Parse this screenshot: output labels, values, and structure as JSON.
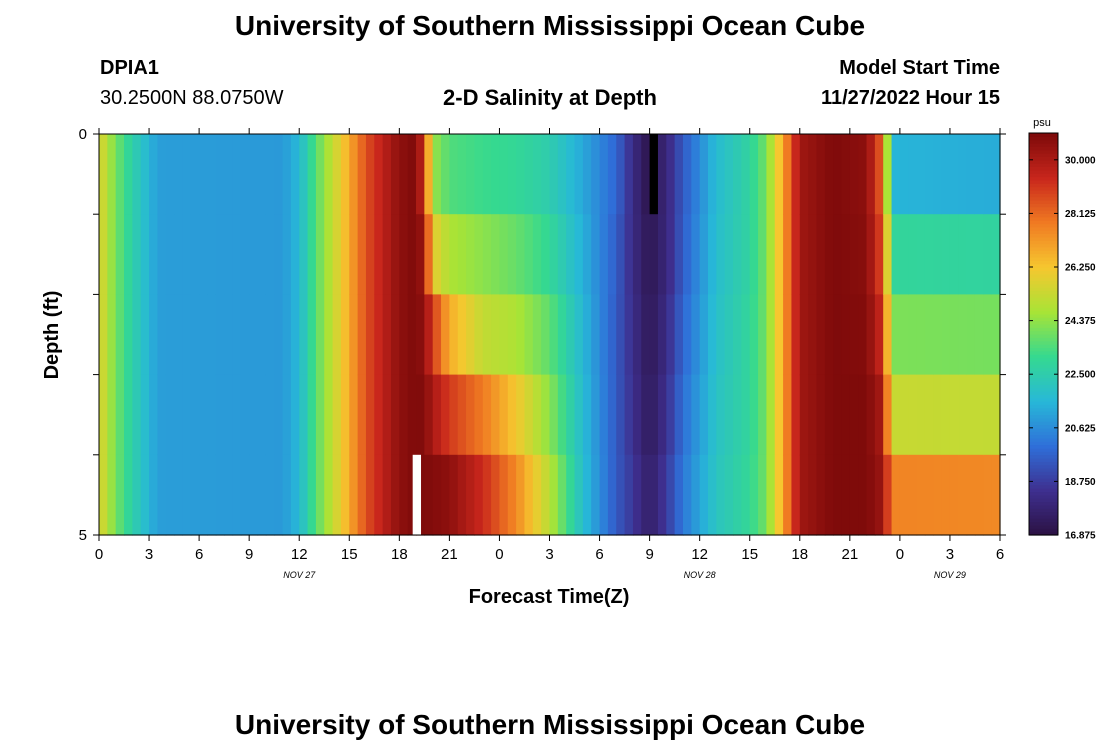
{
  "page": {
    "title_top": "University of Southern Mississippi Ocean Cube",
    "title_bottom": "University of Southern Mississippi Ocean Cube",
    "station_id": "DPIA1",
    "station_coords": "30.2500N  88.0750W",
    "plot_title": "2-D Salinity at Depth",
    "model_label": "Model Start Time",
    "model_time": "11/27/2022 Hour 15"
  },
  "chart_data": {
    "type": "heatmap",
    "title": "2-D Salinity at Depth",
    "xlabel": "Forecast Time(Z)",
    "ylabel": "Depth (ft)",
    "x_tick_labels": [
      "0",
      "3",
      "6",
      "9",
      "12",
      "15",
      "18",
      "21",
      "0",
      "3",
      "6",
      "9",
      "12",
      "15",
      "18",
      "21",
      "0",
      "3",
      "6"
    ],
    "date_labels": [
      {
        "label": "NOV 27",
        "at_hour": 12
      },
      {
        "label": "NOV 28",
        "at_hour": 36
      },
      {
        "label": "NOV 29",
        "at_hour": 51
      }
    ],
    "x_range_hours": [
      0,
      54
    ],
    "y_tick_labels": [
      "0",
      "5"
    ],
    "y_range_ft": [
      0,
      5
    ],
    "depth_levels": 5,
    "colorbar": {
      "unit": "psu",
      "min": 16.875,
      "max": 30.938,
      "tick_values": [
        "30.000",
        "28.125",
        "26.250",
        "24.375",
        "22.500",
        "20.625",
        "18.750",
        "16.875"
      ],
      "colors": [
        "#2b1142",
        "#3e2f8f",
        "#2f6fd9",
        "#27b8d8",
        "#35d990",
        "#a8e436",
        "#f6c72f",
        "#f07a22",
        "#c8261c",
        "#7d0a0a"
      ]
    },
    "keyframes": [
      {
        "hour": 0,
        "values": [
          25.8,
          25.8,
          25.8,
          25.8,
          25.8
        ]
      },
      {
        "hour": 1,
        "values": [
          24.0,
          24.0,
          24.0,
          24.0,
          24.0
        ]
      },
      {
        "hour": 2,
        "values": [
          22.6,
          22.6,
          22.6,
          22.6,
          22.6
        ]
      },
      {
        "hour": 3.5,
        "values": [
          21.0,
          21.0,
          21.0,
          21.0,
          21.0
        ]
      },
      {
        "hour": 11,
        "values": [
          20.9,
          20.9,
          20.9,
          20.9,
          20.9
        ]
      },
      {
        "hour": 12,
        "values": [
          21.6,
          21.6,
          21.6,
          21.6,
          21.6
        ]
      },
      {
        "hour": 13,
        "values": [
          23.6,
          23.6,
          23.6,
          23.6,
          23.6
        ]
      },
      {
        "hour": 14.5,
        "values": [
          26.0,
          26.0,
          26.0,
          26.0,
          26.0
        ]
      },
      {
        "hour": 16,
        "values": [
          28.6,
          28.6,
          28.6,
          28.6,
          28.6
        ]
      },
      {
        "hour": 18,
        "values": [
          30.6,
          30.6,
          30.6,
          30.6,
          30.6
        ]
      },
      {
        "hour": 19,
        "values": [
          30.9,
          30.9,
          30.9,
          30.9,
          30.9
        ]
      },
      {
        "hour": 19.5,
        "values": [
          29.0,
          30.2,
          30.5,
          30.8,
          30.9
        ]
      },
      {
        "hour": 20,
        "values": [
          24.5,
          26.0,
          29.0,
          30.0,
          30.8
        ]
      },
      {
        "hour": 21,
        "values": [
          23.5,
          24.8,
          26.8,
          29.0,
          30.6
        ]
      },
      {
        "hour": 23,
        "values": [
          23.2,
          24.3,
          25.2,
          27.8,
          29.3
        ]
      },
      {
        "hour": 25,
        "values": [
          23.0,
          23.8,
          24.8,
          26.2,
          27.5
        ]
      },
      {
        "hour": 27,
        "values": [
          22.5,
          23.0,
          23.7,
          24.3,
          25.0
        ]
      },
      {
        "hour": 29,
        "values": [
          21.2,
          21.4,
          21.6,
          21.7,
          21.8
        ]
      },
      {
        "hour": 31,
        "values": [
          19.8,
          19.6,
          19.5,
          19.5,
          19.5
        ]
      },
      {
        "hour": 32,
        "values": [
          18.2,
          18.2,
          18.3,
          18.4,
          18.6
        ]
      },
      {
        "hour": 33,
        "values": [
          17.0,
          17.2,
          17.3,
          17.4,
          17.6
        ]
      },
      {
        "hour": 34,
        "values": [
          18.0,
          18.0,
          18.2,
          18.4,
          18.7
        ]
      },
      {
        "hour": 35,
        "values": [
          19.5,
          19.6,
          19.8,
          20.0,
          20.2
        ]
      },
      {
        "hour": 37,
        "values": [
          21.7,
          21.8,
          21.9,
          22.0,
          22.1
        ]
      },
      {
        "hour": 39,
        "values": [
          22.8,
          22.8,
          22.9,
          22.9,
          23.0
        ]
      },
      {
        "hour": 40,
        "values": [
          24.0,
          24.0,
          24.0,
          24.0,
          24.0
        ]
      },
      {
        "hour": 41,
        "values": [
          27.0,
          27.0,
          27.0,
          27.0,
          27.0
        ]
      },
      {
        "hour": 42,
        "values": [
          30.2,
          30.2,
          30.2,
          30.2,
          30.2
        ]
      },
      {
        "hour": 44,
        "values": [
          30.9,
          30.9,
          30.9,
          30.9,
          30.9
        ]
      },
      {
        "hour": 46,
        "values": [
          30.6,
          30.7,
          30.8,
          30.9,
          30.9
        ]
      },
      {
        "hour": 47,
        "values": [
          28.0,
          28.5,
          29.2,
          30.0,
          30.3
        ]
      },
      {
        "hour": 47.5,
        "values": [
          21.5,
          22.9,
          24.1,
          25.3,
          27.6
        ]
      },
      {
        "hour": 54,
        "values": [
          21.3,
          22.8,
          24.0,
          25.2,
          27.5
        ]
      }
    ],
    "missing_cells": [
      {
        "hour_start": 33.0,
        "hour_end": 33.5,
        "depth_index": 0,
        "color": "#000000"
      },
      {
        "hour_start": 18.8,
        "hour_end": 19.3,
        "depth_index": 4,
        "color": "#ffffff"
      }
    ]
  }
}
